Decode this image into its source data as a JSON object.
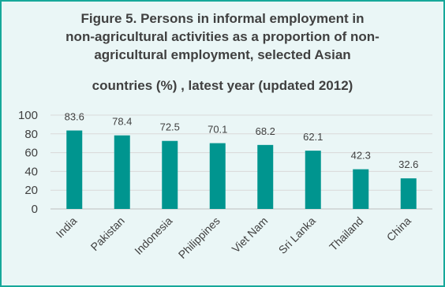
{
  "chart_data": {
    "type": "bar",
    "title_lines": [
      "Figure 5.  Persons in informal employment in",
      "non-agricultural activities as a proportion of non-",
      "agricultural employment, selected Asian",
      "countries (%) , latest year (updated 2012)"
    ],
    "categories": [
      "India",
      "Pakistan",
      "Indonesia",
      "Philippines",
      "Viet Nam",
      "Sri Lanka",
      "Thailand",
      "China"
    ],
    "values": [
      83.6,
      78.4,
      72.5,
      70.1,
      68.2,
      62.1,
      42.3,
      32.6
    ],
    "data_labels": [
      "83.6",
      "78.4",
      "72.5",
      "70.1",
      "68.2",
      "62.1",
      "42.3",
      "32.6"
    ],
    "y_ticks": [
      "0",
      "20",
      "40",
      "60",
      "80",
      "100"
    ],
    "ylim": [
      0,
      100
    ],
    "grid": true,
    "bar_color": "#00958f",
    "border_color": "#16a89a",
    "background_color": "#eaf6f6"
  }
}
